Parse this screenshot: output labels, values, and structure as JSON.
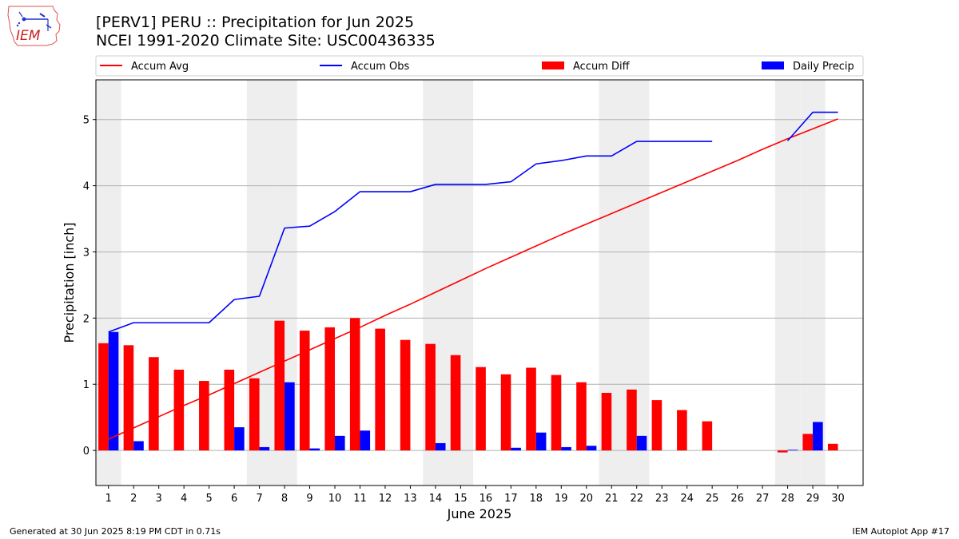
{
  "header": {
    "title_line1": "[PERV1] PERU :: Precipitation for Jun 2025",
    "title_line2": "NCEI 1991-2020 Climate Site: USC00436335"
  },
  "logo": {
    "text": "IEM",
    "icon": "iem-state-logo-icon"
  },
  "footer": {
    "left": "Generated at 30 Jun 2025 8:19 PM CDT in 0.71s",
    "right": "IEM Autoplot App #17"
  },
  "colors": {
    "avg": "#ff0000",
    "obs": "#0000ff",
    "diff": "#ff0000",
    "daily": "#0000ff",
    "weekend": "#eeeeee",
    "grid": "#b0b0b0"
  },
  "chart_data": {
    "type": "bar",
    "xlabel": "June 2025",
    "ylabel": "Precipitation [inch]",
    "ylim": [
      -0.53,
      5.6
    ],
    "yticks": [
      0,
      1,
      2,
      3,
      4,
      5
    ],
    "grid": "horizontal",
    "legend_placement": "top, above plot",
    "shaded_days": [
      1,
      7,
      8,
      14,
      15,
      21,
      22,
      28,
      29
    ],
    "legend": [
      {
        "label": "Accum Avg",
        "kind": "line",
        "color": "#ff0000"
      },
      {
        "label": "Accum Obs",
        "kind": "line",
        "color": "#0000ff"
      },
      {
        "label": "Accum Diff",
        "kind": "bar",
        "color": "#ff0000"
      },
      {
        "label": "Daily Precip",
        "kind": "bar",
        "color": "#0000ff"
      }
    ],
    "categories": [
      1,
      2,
      3,
      4,
      5,
      6,
      7,
      8,
      9,
      10,
      11,
      12,
      13,
      14,
      15,
      16,
      17,
      18,
      19,
      20,
      21,
      22,
      23,
      24,
      25,
      26,
      27,
      28,
      29,
      30
    ],
    "series": [
      {
        "name": "Accum Avg",
        "type": "line",
        "values": [
          0.17,
          0.34,
          0.51,
          0.68,
          0.84,
          1.01,
          1.18,
          1.35,
          1.52,
          1.69,
          1.86,
          2.04,
          2.21,
          2.39,
          2.57,
          2.75,
          2.92,
          3.09,
          3.26,
          3.42,
          3.58,
          3.74,
          3.9,
          4.06,
          4.22,
          4.38,
          4.55,
          4.71,
          4.86,
          5.01
        ]
      },
      {
        "name": "Accum Obs",
        "type": "line",
        "values": [
          1.79,
          1.93,
          1.93,
          1.93,
          1.93,
          2.28,
          2.33,
          3.36,
          3.39,
          3.61,
          3.91,
          3.91,
          3.91,
          4.02,
          4.02,
          4.02,
          4.06,
          4.33,
          4.38,
          4.45,
          4.45,
          4.67,
          4.67,
          4.67,
          4.67,
          null,
          null,
          4.68,
          5.11,
          5.11
        ]
      },
      {
        "name": "Accum Diff",
        "type": "bar",
        "values": [
          1.62,
          1.59,
          1.41,
          1.22,
          1.05,
          1.22,
          1.09,
          1.96,
          1.81,
          1.86,
          2.0,
          1.84,
          1.67,
          1.61,
          1.44,
          1.26,
          1.15,
          1.25,
          1.14,
          1.03,
          0.87,
          0.92,
          0.76,
          0.61,
          0.44,
          null,
          null,
          -0.03,
          0.25,
          0.1
        ]
      },
      {
        "name": "Daily Precip",
        "type": "bar",
        "values": [
          1.79,
          0.14,
          0,
          0,
          0,
          0.35,
          0.05,
          1.03,
          0.03,
          0.22,
          0.3,
          0,
          0,
          0.11,
          0,
          0,
          0.04,
          0.27,
          0.05,
          0.07,
          0,
          0.22,
          0,
          0,
          0,
          null,
          null,
          0.01,
          0.43,
          0
        ]
      }
    ]
  }
}
